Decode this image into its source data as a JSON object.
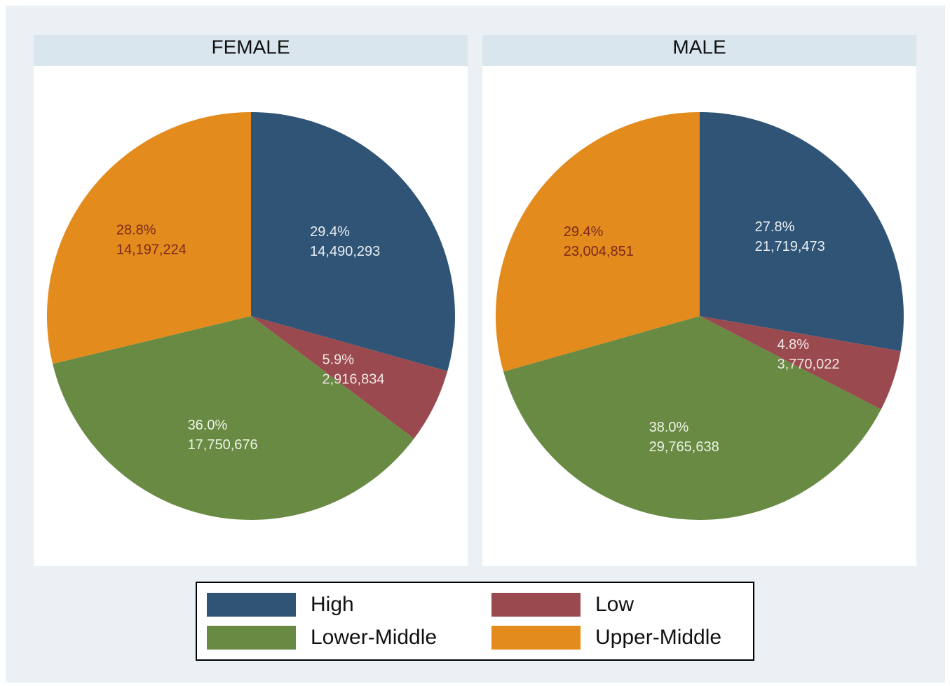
{
  "chart_data": [
    {
      "type": "pie",
      "title": "FEMALE",
      "categories": [
        "High",
        "Low",
        "Lower-Middle",
        "Upper-Middle"
      ],
      "values": [
        14490293,
        2916834,
        17750676,
        14197224
      ],
      "value_labels": [
        "14,490,293",
        "2,916,834",
        "17,750,676",
        "14,197,224"
      ],
      "percent_labels": [
        "29.4%",
        "5.9%",
        "36.0%",
        "28.8%"
      ],
      "colors": [
        "#2f5475",
        "#9a4a4e",
        "#688a43",
        "#e38b1c"
      ],
      "label_colors": [
        "#e8eef4",
        "#f2e6e6",
        "#eef3e6",
        "#7a2a1c"
      ]
    },
    {
      "type": "pie",
      "title": "MALE",
      "categories": [
        "High",
        "Low",
        "Lower-Middle",
        "Upper-Middle"
      ],
      "values": [
        21719473,
        3770022,
        29765638,
        23004851
      ],
      "value_labels": [
        "21,719,473",
        "3,770,022",
        "29,765,638",
        "23,004,851"
      ],
      "percent_labels": [
        "27.8%",
        "4.8%",
        "38.0%",
        "29.4%"
      ],
      "colors": [
        "#2f5475",
        "#9a4a4e",
        "#688a43",
        "#e38b1c"
      ],
      "label_colors": [
        "#e8eef4",
        "#f2e6e6",
        "#eef3e6",
        "#7a2a1c"
      ]
    }
  ]
}
